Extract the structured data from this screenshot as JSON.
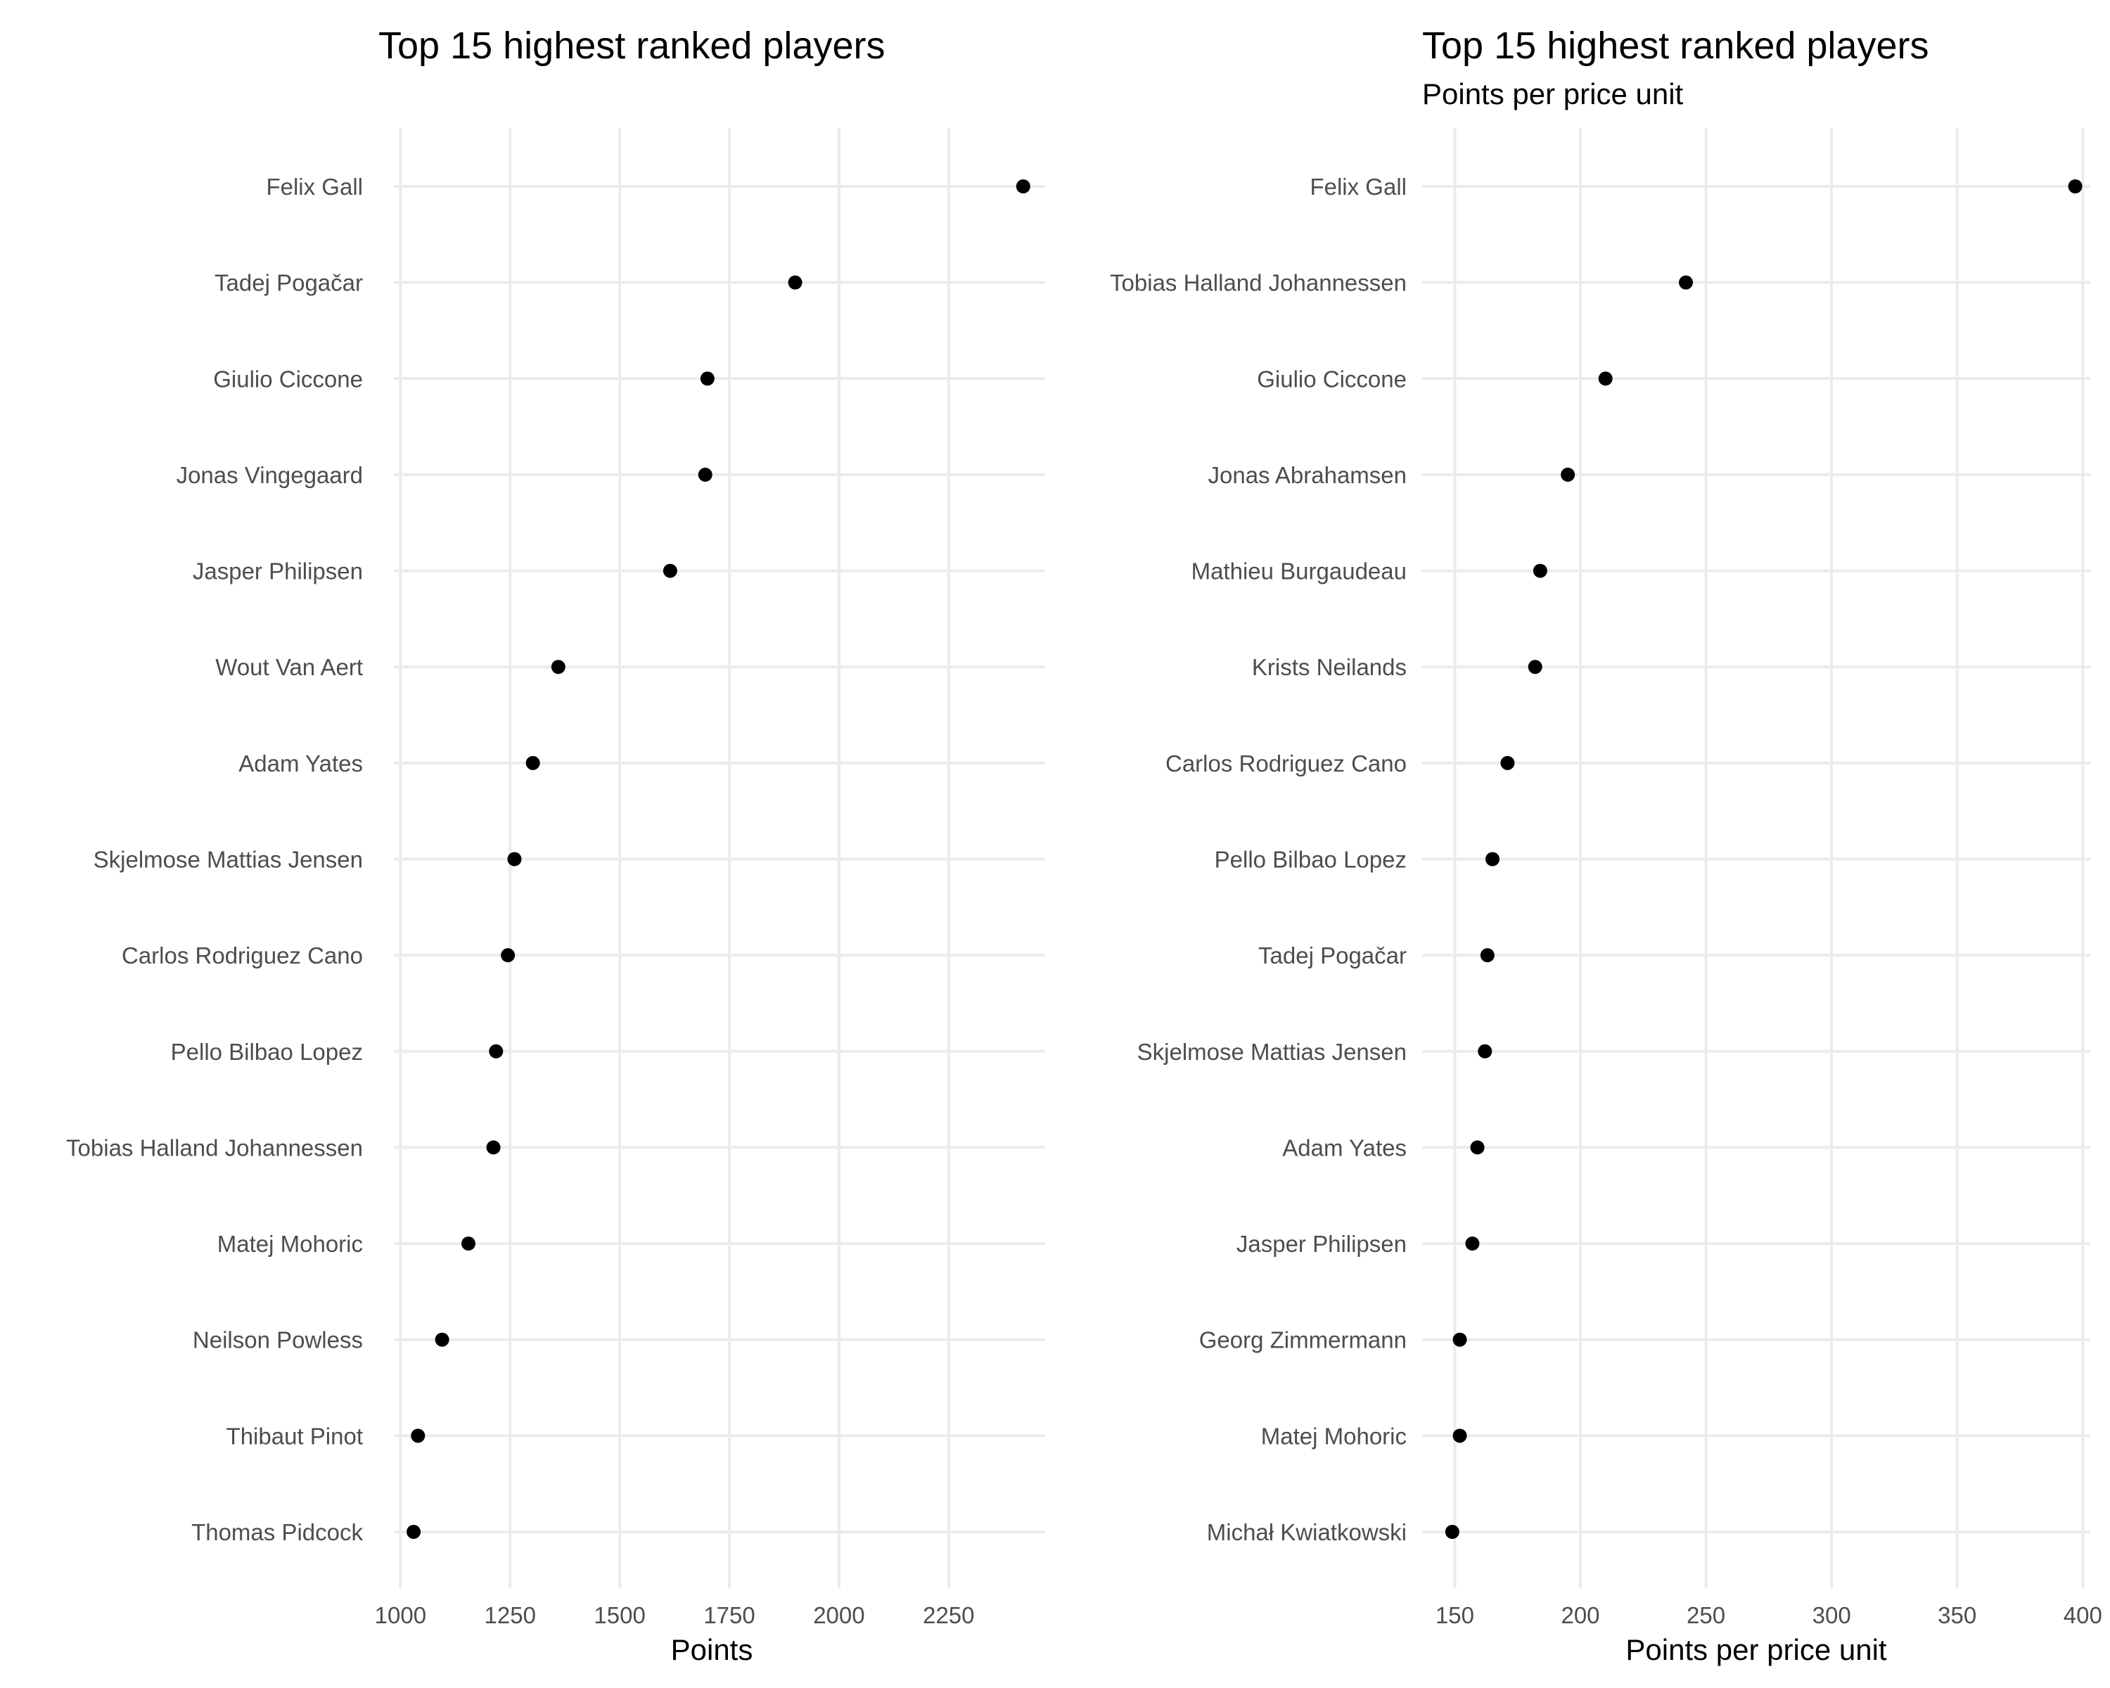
{
  "colors": {
    "grid": "#ebebeb",
    "point": "#000000",
    "tick_label": "#4d4d4d",
    "text": "#000000"
  },
  "chart_data": [
    {
      "type": "scatter",
      "title": "Top 15 highest ranked players",
      "subtitle": "",
      "xlabel": "Points",
      "ylabel": "",
      "xlim": [
        985,
        2470
      ],
      "xticks": [
        1000,
        1250,
        1500,
        1750,
        2000,
        2250
      ],
      "grid": true,
      "legend": "none",
      "categories": [
        "Felix Gall",
        "Tadej Pogačar",
        "Giulio Ciccone",
        "Jonas Vingegaard",
        "Jasper Philipsen",
        "Wout Van Aert",
        "Adam Yates",
        "Skjelmose  Mattias Jensen",
        "Carlos Rodriguez Cano",
        "Pello Bilbao Lopez",
        "Tobias Halland Johannessen",
        "Matej Mohoric",
        "Neilson Powless",
        "Thibaut Pinot",
        "Thomas Pidcock"
      ],
      "values": [
        2420,
        1900,
        1700,
        1695,
        1615,
        1360,
        1302,
        1260,
        1245,
        1218,
        1212,
        1155,
        1095,
        1040,
        1030
      ]
    },
    {
      "type": "scatter",
      "title": "Top 15 highest ranked players",
      "subtitle": "Points per price unit",
      "xlabel": "Points per price unit",
      "ylabel": "",
      "xlim": [
        137,
        403
      ],
      "xticks": [
        150,
        200,
        250,
        300,
        350,
        400
      ],
      "grid": true,
      "legend": "none",
      "categories": [
        "Felix Gall",
        "Tobias Halland Johannessen",
        "Giulio Ciccone",
        "Jonas Abrahamsen",
        "Mathieu Burgaudeau",
        "Krists Neilands",
        "Carlos Rodriguez Cano",
        "Pello Bilbao Lopez",
        "Tadej Pogačar",
        "Skjelmose  Mattias Jensen",
        "Adam Yates",
        "Jasper Philipsen",
        "Georg Zimmermann",
        "Matej Mohoric",
        "Michał Kwiatkowski"
      ],
      "values": [
        397,
        242,
        210,
        195,
        184,
        182,
        171,
        165,
        163,
        162,
        159,
        157,
        152,
        152,
        149
      ]
    }
  ]
}
